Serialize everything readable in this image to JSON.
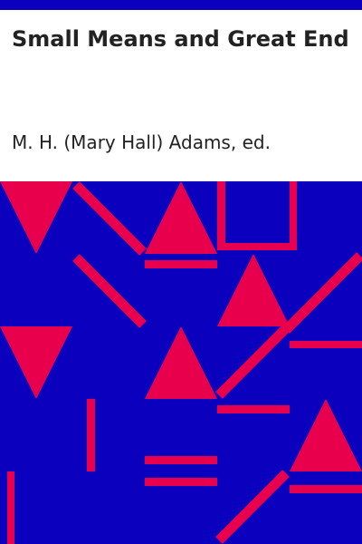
{
  "book": {
    "title": "Small Means and Great Ends",
    "author": "M. H. (Mary Hall) Adams, ed."
  },
  "colors": {
    "band": "#0a00bd",
    "art_background": "#0a00bd",
    "art_shapes": "#e8004d",
    "text": "#222222",
    "page": "#ffffff"
  }
}
